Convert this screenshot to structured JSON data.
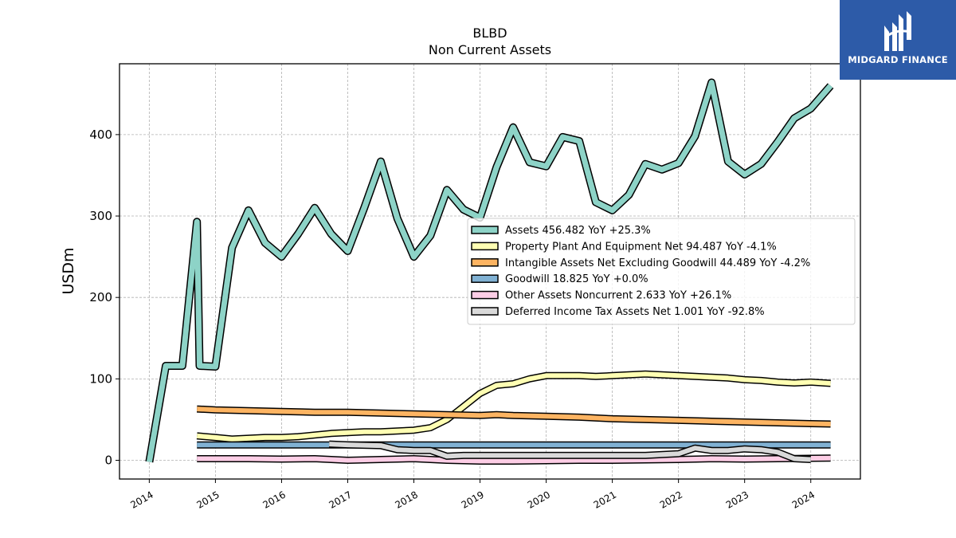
{
  "title_line1": "BLBD",
  "title_line2": "Non Current  Assets",
  "brand": {
    "name": "MIDGARD FINANCE",
    "bg_color": "#2d5ba8"
  },
  "chart_data": {
    "type": "line",
    "title": "BLBD Non Current  Assets",
    "ylabel": "USDm",
    "xlabel": "",
    "xlim": [
      2013.55,
      2024.75
    ],
    "ylim": [
      -23,
      487
    ],
    "xticks": [
      2014,
      2015,
      2016,
      2017,
      2018,
      2019,
      2020,
      2021,
      2022,
      2023,
      2024
    ],
    "yticks": [
      0,
      100,
      200,
      300,
      400
    ],
    "grid": true,
    "legend_position": "center-right",
    "series": [
      {
        "name": "Assets",
        "legend": "Assets  456.482 YoY +25.3%",
        "color": "#8dd3c7",
        "width": 7,
        "points": [
          [
            2014.0,
            -2
          ],
          [
            2014.25,
            116
          ],
          [
            2014.5,
            116
          ],
          [
            2014.72,
            293
          ],
          [
            2014.76,
            116
          ],
          [
            2015.0,
            115
          ],
          [
            2015.25,
            261
          ],
          [
            2015.5,
            307
          ],
          [
            2015.75,
            267
          ],
          [
            2016.0,
            250
          ],
          [
            2016.25,
            278
          ],
          [
            2016.5,
            310
          ],
          [
            2016.75,
            278
          ],
          [
            2017.0,
            257
          ],
          [
            2017.25,
            310
          ],
          [
            2017.5,
            367
          ],
          [
            2017.75,
            297
          ],
          [
            2018.0,
            250
          ],
          [
            2018.25,
            276
          ],
          [
            2018.5,
            332
          ],
          [
            2018.75,
            308
          ],
          [
            2019.0,
            298
          ],
          [
            2019.25,
            360
          ],
          [
            2019.5,
            409
          ],
          [
            2019.75,
            366
          ],
          [
            2020.0,
            361
          ],
          [
            2020.25,
            397
          ],
          [
            2020.5,
            392
          ],
          [
            2020.75,
            317
          ],
          [
            2021.0,
            307
          ],
          [
            2021.25,
            326
          ],
          [
            2021.5,
            364
          ],
          [
            2021.75,
            357
          ],
          [
            2022.0,
            365
          ],
          [
            2022.25,
            398
          ],
          [
            2022.5,
            464
          ],
          [
            2022.75,
            367
          ],
          [
            2023.0,
            351
          ],
          [
            2023.25,
            364
          ],
          [
            2023.5,
            391
          ],
          [
            2023.75,
            420
          ],
          [
            2024.0,
            432
          ],
          [
            2024.3,
            460
          ]
        ]
      },
      {
        "name": "Property Plant And Equipment Net",
        "legend": "Property Plant And Equipment Net  94.487 YoY -4.1%",
        "color": "#ffffb3",
        "width": 6,
        "points": [
          [
            2014.72,
            30
          ],
          [
            2015.0,
            28
          ],
          [
            2015.25,
            26
          ],
          [
            2015.5,
            27
          ],
          [
            2015.75,
            28
          ],
          [
            2016.0,
            28
          ],
          [
            2016.25,
            29
          ],
          [
            2016.5,
            31
          ],
          [
            2016.75,
            33
          ],
          [
            2017.0,
            34
          ],
          [
            2017.25,
            35
          ],
          [
            2017.5,
            35
          ],
          [
            2017.75,
            36
          ],
          [
            2018.0,
            37
          ],
          [
            2018.25,
            40
          ],
          [
            2018.5,
            50
          ],
          [
            2018.75,
            66
          ],
          [
            2019.0,
            82
          ],
          [
            2019.25,
            92
          ],
          [
            2019.5,
            94
          ],
          [
            2019.75,
            100
          ],
          [
            2020.0,
            104
          ],
          [
            2020.25,
            104
          ],
          [
            2020.5,
            104
          ],
          [
            2020.75,
            103
          ],
          [
            2021.0,
            104
          ],
          [
            2021.25,
            105
          ],
          [
            2021.5,
            106
          ],
          [
            2021.75,
            105
          ],
          [
            2022.0,
            104
          ],
          [
            2022.25,
            103
          ],
          [
            2022.5,
            102
          ],
          [
            2022.75,
            101
          ],
          [
            2023.0,
            99
          ],
          [
            2023.25,
            98
          ],
          [
            2023.5,
            96
          ],
          [
            2023.75,
            95
          ],
          [
            2024.0,
            96
          ],
          [
            2024.3,
            94.5
          ]
        ]
      },
      {
        "name": "Intangible Assets Net Excluding Goodwill",
        "legend": "Intangible Assets Net Excluding Goodwill  44.489 YoY -4.2%",
        "color": "#fdb462",
        "width": 6,
        "points": [
          [
            2014.72,
            63
          ],
          [
            2015.0,
            62
          ],
          [
            2015.5,
            61
          ],
          [
            2016.0,
            60
          ],
          [
            2016.5,
            59
          ],
          [
            2017.0,
            59
          ],
          [
            2017.5,
            58
          ],
          [
            2018.0,
            57
          ],
          [
            2018.5,
            56
          ],
          [
            2019.0,
            55
          ],
          [
            2019.25,
            56
          ],
          [
            2019.5,
            55
          ],
          [
            2020.0,
            54
          ],
          [
            2020.5,
            53
          ],
          [
            2021.0,
            51
          ],
          [
            2021.5,
            50
          ],
          [
            2022.0,
            49
          ],
          [
            2022.5,
            48
          ],
          [
            2023.0,
            47
          ],
          [
            2023.5,
            46
          ],
          [
            2024.0,
            45
          ],
          [
            2024.3,
            44.5
          ]
        ]
      },
      {
        "name": "Goodwill",
        "legend": "Goodwill  18.825 YoY +0.0%",
        "color": "#80b1d3",
        "width": 6,
        "points": [
          [
            2014.72,
            18.8
          ],
          [
            2024.3,
            18.8
          ]
        ]
      },
      {
        "name": "Other Assets Noncurrent",
        "legend": "Other Assets Noncurrent  2.633 YoY +26.1%",
        "color": "#fccde5",
        "width": 6,
        "points": [
          [
            2014.72,
            2
          ],
          [
            2015.5,
            2
          ],
          [
            2016.0,
            1.5
          ],
          [
            2016.5,
            2
          ],
          [
            2017.0,
            0
          ],
          [
            2017.5,
            1
          ],
          [
            2018.0,
            2
          ],
          [
            2018.5,
            0
          ],
          [
            2019.0,
            -1
          ],
          [
            2019.5,
            -1
          ],
          [
            2020.0,
            -0.5
          ],
          [
            2020.5,
            0
          ],
          [
            2021.0,
            0
          ],
          [
            2021.5,
            0.5
          ],
          [
            2022.0,
            1
          ],
          [
            2022.5,
            2
          ],
          [
            2023.0,
            1.5
          ],
          [
            2023.5,
            2
          ],
          [
            2024.0,
            2.5
          ],
          [
            2024.3,
            2.6
          ]
        ]
      },
      {
        "name": "Deferred Income Tax Assets Net",
        "legend": "Deferred Income Tax Assets Net  1.001 YoY -92.8%",
        "color": "#d9d9d9",
        "width": 6,
        "points": [
          [
            2016.72,
            20
          ],
          [
            2017.0,
            19
          ],
          [
            2017.5,
            18
          ],
          [
            2017.75,
            13
          ],
          [
            2018.0,
            12
          ],
          [
            2018.25,
            12
          ],
          [
            2018.5,
            5
          ],
          [
            2018.75,
            6
          ],
          [
            2019.0,
            6
          ],
          [
            2019.5,
            6
          ],
          [
            2020.0,
            6
          ],
          [
            2020.5,
            6
          ],
          [
            2021.0,
            6
          ],
          [
            2021.5,
            6
          ],
          [
            2022.0,
            8
          ],
          [
            2022.25,
            15
          ],
          [
            2022.5,
            12
          ],
          [
            2022.75,
            12
          ],
          [
            2023.0,
            14
          ],
          [
            2023.25,
            13
          ],
          [
            2023.5,
            10
          ],
          [
            2023.75,
            2
          ],
          [
            2024.0,
            1
          ]
        ]
      }
    ]
  }
}
